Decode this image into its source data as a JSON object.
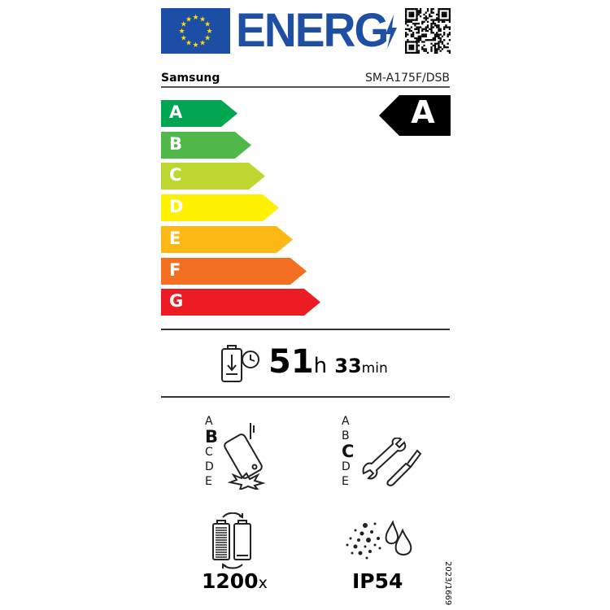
{
  "header": {
    "logo_text": "ENERG",
    "qr_code": "qr-code"
  },
  "supplier": "Samsung",
  "model": "SM-A175F/DSB",
  "energy_class": "A",
  "scale": [
    {
      "letter": "A",
      "color": "#00a651"
    },
    {
      "letter": "B",
      "color": "#50b848"
    },
    {
      "letter": "C",
      "color": "#bed630"
    },
    {
      "letter": "D",
      "color": "#fff200"
    },
    {
      "letter": "E",
      "color": "#fcb814"
    },
    {
      "letter": "F",
      "color": "#f36f21"
    },
    {
      "letter": "G",
      "color": "#ed1c24"
    }
  ],
  "battery": {
    "hours": "51",
    "h_unit": "h",
    "minutes": "33",
    "min_unit": "min"
  },
  "drop_class": {
    "letters": [
      "A",
      "B",
      "C",
      "D",
      "E"
    ],
    "selected": "B"
  },
  "repair_class": {
    "letters": [
      "A",
      "B",
      "C",
      "D",
      "E"
    ],
    "selected": "C"
  },
  "cycles": {
    "value": "1200",
    "unit": "x"
  },
  "ip_rating": "IP54",
  "regulation": "2023/1669",
  "colors": {
    "eu_blue": "#1d4ea6",
    "logo_blue": "#1f4fa3"
  }
}
